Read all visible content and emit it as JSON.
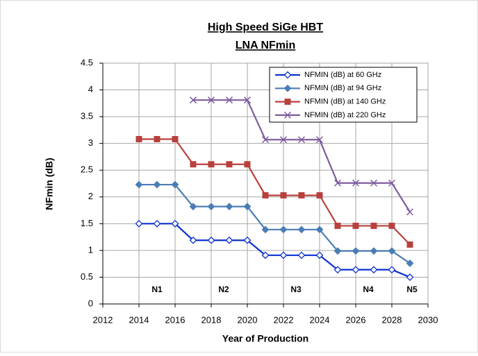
{
  "chart_data": {
    "type": "line",
    "title": "High Speed SiGe HBT",
    "subtitle": "LNA NFmin",
    "x_label": "Year of Production",
    "y_label": "NFmin (dB)",
    "x": [
      2014,
      2015,
      2016,
      2017,
      2018,
      2019,
      2020,
      2021,
      2022,
      2023,
      2024,
      2025,
      2026,
      2027,
      2028,
      2029
    ],
    "series": [
      {
        "name": "NFMIN (dB) at 60 GHz",
        "color": "#0b30d0",
        "marker": "diamond-open",
        "values": [
          1.5,
          1.5,
          1.5,
          1.19,
          1.19,
          1.19,
          1.19,
          0.91,
          0.91,
          0.91,
          0.91,
          0.64,
          0.64,
          0.64,
          0.64,
          0.5
        ]
      },
      {
        "name": "NFMIN (dB) at 94 GHz",
        "color": "#4a7db5",
        "marker": "diamond",
        "values": [
          2.23,
          2.23,
          2.23,
          1.82,
          1.82,
          1.82,
          1.82,
          1.39,
          1.39,
          1.39,
          1.39,
          0.99,
          0.99,
          0.99,
          0.99,
          0.76
        ]
      },
      {
        "name": "NFMIN (dB) at 140 GHz",
        "color": "#b8403d",
        "marker": "square",
        "values": [
          3.08,
          3.08,
          3.08,
          2.61,
          2.61,
          2.61,
          2.61,
          2.03,
          2.03,
          2.03,
          2.03,
          1.46,
          1.46,
          1.46,
          1.46,
          1.11
        ]
      },
      {
        "name": "NFMIN (dB) at 220 GHz",
        "color": "#7e5c9e",
        "marker": "x",
        "values": [
          null,
          null,
          null,
          3.81,
          3.81,
          3.81,
          3.81,
          3.07,
          3.07,
          3.07,
          3.07,
          2.26,
          2.26,
          2.26,
          2.26,
          1.72
        ]
      }
    ],
    "xlim": [
      2012,
      2030
    ],
    "xticks": [
      2012,
      2014,
      2016,
      2018,
      2020,
      2022,
      2024,
      2026,
      2028,
      2030
    ],
    "ylim": [
      0,
      4.5
    ],
    "yticks": [
      0,
      0.5,
      1,
      1.5,
      2,
      2.5,
      3,
      3.5,
      4,
      4.5
    ],
    "grid": true,
    "legend": "upper right",
    "annotations": [
      "N1",
      "N2",
      "N3",
      "N4",
      "N5"
    ]
  }
}
